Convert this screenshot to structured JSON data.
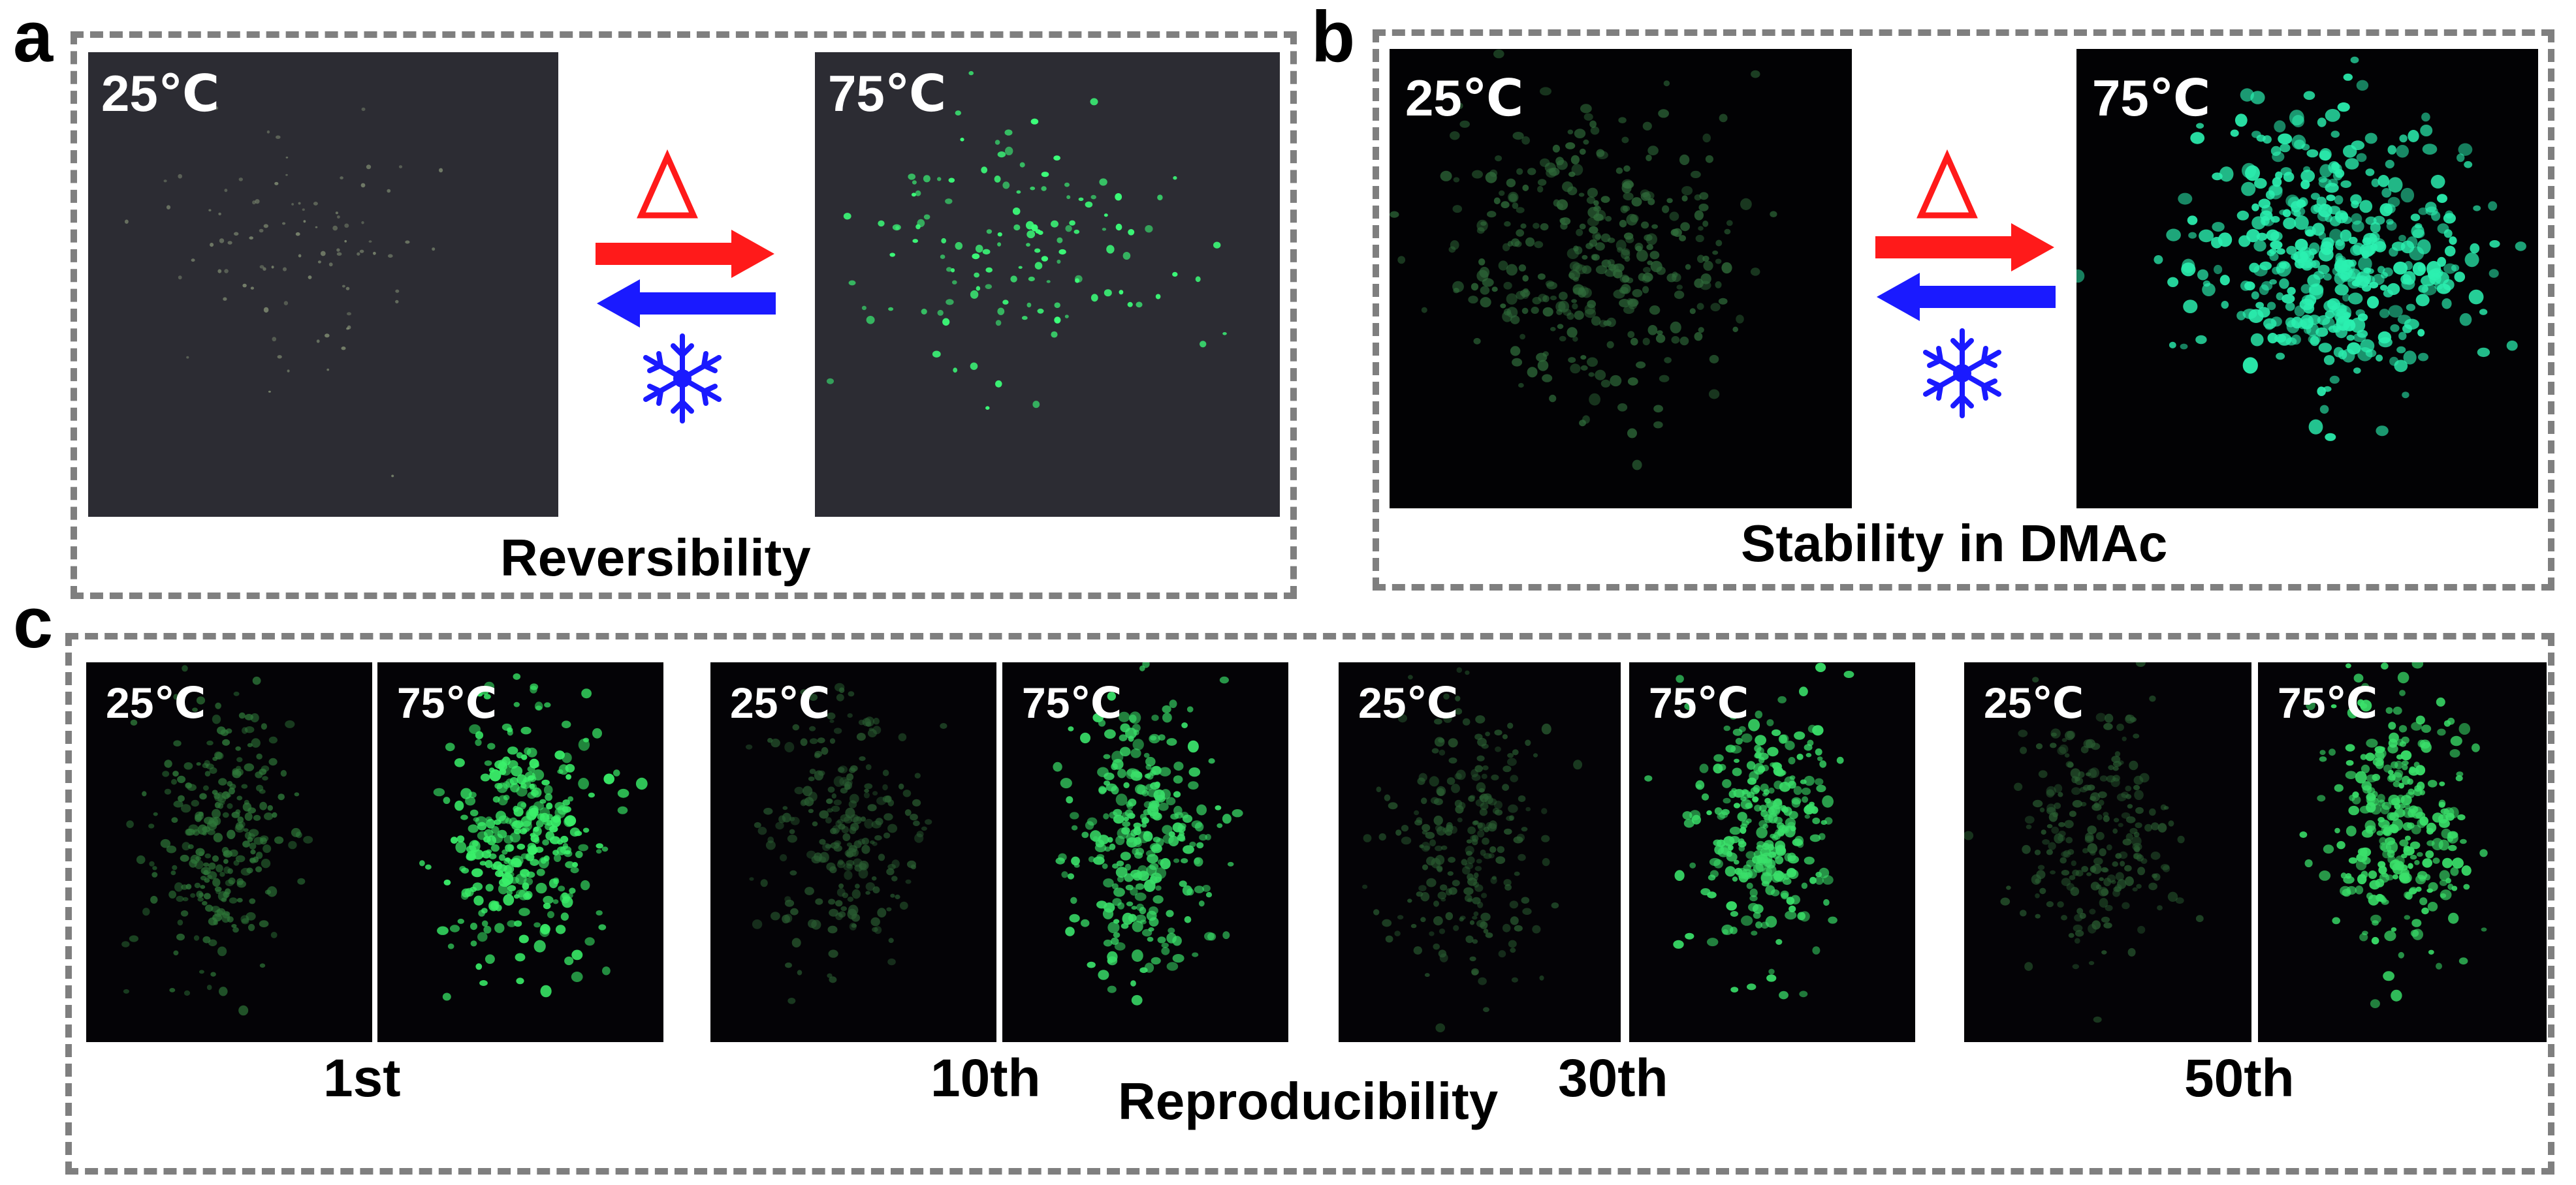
{
  "panels": {
    "a": {
      "letter": "a",
      "left_label": "25℃",
      "right_label": "75℃",
      "caption": "Reversibility",
      "heat_symbol": "triangle-icon",
      "cool_symbol": "snowflake-icon"
    },
    "b": {
      "letter": "b",
      "left_label": "25℃",
      "right_label": "75℃",
      "caption": "Stability in DMAc",
      "heat_symbol": "triangle-icon",
      "cool_symbol": "snowflake-icon"
    },
    "c": {
      "letter": "c",
      "caption": "Reproducibility",
      "cycles": [
        {
          "label": "1st",
          "cold": "25℃",
          "hot": "75℃"
        },
        {
          "label": "10th",
          "cold": "25℃",
          "hot": "75℃"
        },
        {
          "label": "30th",
          "cold": "25℃",
          "hot": "75℃"
        },
        {
          "label": "50th",
          "cold": "25℃",
          "hot": "75℃"
        }
      ]
    }
  },
  "colors": {
    "heat_arrow": "#ff1a1a",
    "cool_arrow": "#1a1aff",
    "dim_glow": "#2f6b3a",
    "bright_glow_a": "#3cff7a",
    "bright_glow_b": "#2bf0b0",
    "bright_glow_c": "#3af06a",
    "frame": "#7f7f7f"
  }
}
